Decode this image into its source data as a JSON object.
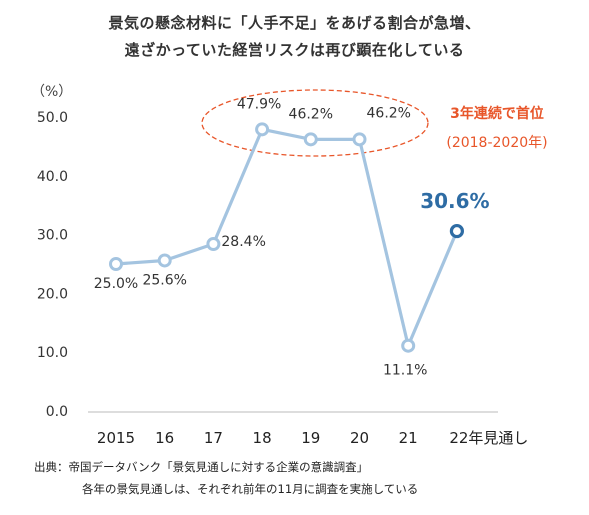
{
  "title_lines": [
    "景気の懸念材料に「人手不足」をあげる割合が急増、",
    "遠ざかっていた経営リスクは再び顕在化している"
  ],
  "unit_label": "（%）",
  "source_lines": [
    "出典：帝国データバンク「景気見通しに対する企業の意識調査」",
    "各年の景気見通しは、それぞれ前年の11月に調査を実施している"
  ],
  "callout": {
    "title": "3年連続で首位",
    "subtitle": "(2018-2020年)",
    "color": "#e8562a"
  },
  "colors": {
    "line": "#a4c4e0",
    "marker_fill": "#ffffff",
    "highlight": "#2e6ca4",
    "axis": "#bbbbbb"
  },
  "chart_data": {
    "type": "line",
    "categories": [
      "2015",
      "16",
      "17",
      "18",
      "19",
      "20",
      "21",
      "22年見通し"
    ],
    "values": [
      25.0,
      25.6,
      28.4,
      47.9,
      46.2,
      46.2,
      11.1,
      30.6
    ],
    "data_labels": [
      "25.0%",
      "25.6%",
      "28.4%",
      "47.9%",
      "46.2%",
      "46.2%",
      "11.1%",
      "30.6%"
    ],
    "highlight_index": 7,
    "yticks": [
      "0.0",
      "10.0",
      "20.0",
      "30.0",
      "40.0",
      "50.0"
    ],
    "ylim": [
      0,
      50
    ],
    "grid": false,
    "xlabel": "",
    "ylabel": ""
  }
}
